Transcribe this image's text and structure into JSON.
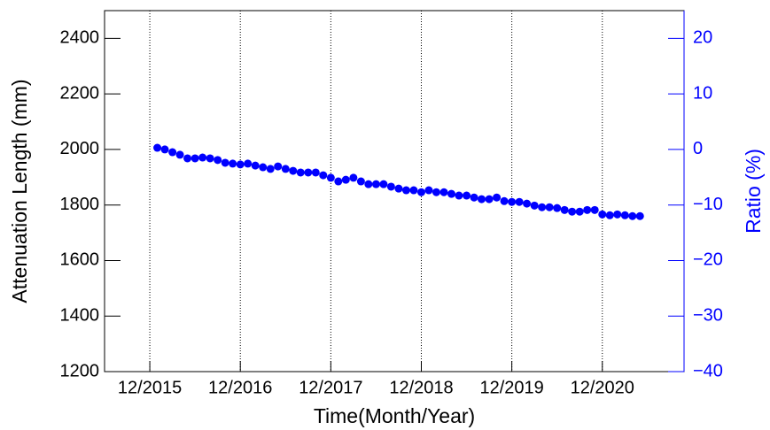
{
  "chart_data": {
    "type": "scatter",
    "xlabel": "Time(Month/Year)",
    "ylabel": "Attenuation Length (mm)",
    "y2label": "Ratio (%)",
    "xlim": [
      2015.417,
      2021.82
    ],
    "xticks": [
      {
        "value": 2015.917,
        "label": "12/2015"
      },
      {
        "value": 2016.917,
        "label": "12/2016"
      },
      {
        "value": 2017.917,
        "label": "12/2017"
      },
      {
        "value": 2018.917,
        "label": "12/2018"
      },
      {
        "value": 2019.917,
        "label": "12/2019"
      },
      {
        "value": 2020.917,
        "label": "12/2020"
      }
    ],
    "ylim": [
      1200,
      2500
    ],
    "yticks": [
      1200,
      1400,
      1600,
      1800,
      2000,
      2200,
      2400
    ],
    "y2lim": [
      -40,
      25
    ],
    "y2ticks": [
      {
        "value": -40,
        "label": "−40"
      },
      {
        "value": -30,
        "label": "−30"
      },
      {
        "value": -20,
        "label": "−20"
      },
      {
        "value": -10,
        "label": "−10"
      },
      0,
      10,
      20
    ],
    "y2color": "#0000ff",
    "xgrid": true,
    "series": [
      {
        "name": "Attenuation Length",
        "color": "#0000ff",
        "x": [
          2016.0,
          2016.083,
          2016.167,
          2016.25,
          2016.333,
          2016.417,
          2016.5,
          2016.583,
          2016.667,
          2016.75,
          2016.833,
          2016.917,
          2017.0,
          2017.083,
          2017.167,
          2017.25,
          2017.333,
          2017.417,
          2017.5,
          2017.583,
          2017.667,
          2017.75,
          2017.833,
          2017.917,
          2018.0,
          2018.083,
          2018.167,
          2018.25,
          2018.333,
          2018.417,
          2018.5,
          2018.583,
          2018.667,
          2018.75,
          2018.833,
          2018.917,
          2019.0,
          2019.083,
          2019.167,
          2019.25,
          2019.333,
          2019.417,
          2019.5,
          2019.583,
          2019.667,
          2019.75,
          2019.833,
          2019.917,
          2020.0,
          2020.083,
          2020.167,
          2020.25,
          2020.333,
          2020.417,
          2020.5,
          2020.583,
          2020.667,
          2020.75,
          2020.833,
          2020.917,
          2021.0,
          2021.083,
          2021.167,
          2021.25,
          2021.333
        ],
        "values": [
          2006,
          2000,
          1990,
          1981,
          1968,
          1968,
          1971,
          1968,
          1962,
          1952,
          1949,
          1946,
          1949,
          1942,
          1936,
          1930,
          1939,
          1930,
          1923,
          1917,
          1917,
          1917,
          1907,
          1898,
          1885,
          1891,
          1898,
          1885,
          1875,
          1875,
          1875,
          1866,
          1859,
          1853,
          1853,
          1846,
          1853,
          1846,
          1846,
          1840,
          1834,
          1834,
          1827,
          1821,
          1821,
          1827,
          1814,
          1811,
          1811,
          1805,
          1798,
          1792,
          1792,
          1789,
          1782,
          1776,
          1776,
          1782,
          1782,
          1766,
          1763,
          1766,
          1763,
          1760,
          1760
        ]
      }
    ]
  }
}
